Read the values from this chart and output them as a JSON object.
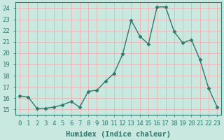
{
  "x": [
    0,
    1,
    2,
    3,
    4,
    5,
    6,
    7,
    8,
    9,
    10,
    11,
    12,
    13,
    14,
    15,
    16,
    17,
    18,
    19,
    20,
    21,
    22,
    23
  ],
  "y": [
    16.2,
    16.1,
    15.1,
    15.1,
    15.2,
    15.4,
    15.7,
    15.2,
    16.6,
    16.7,
    17.5,
    18.2,
    19.9,
    22.9,
    21.5,
    20.8,
    24.1,
    24.1,
    21.9,
    20.9,
    21.2,
    19.4,
    16.9,
    15.2
  ],
  "line_color": "#2d7a6e",
  "marker": "D",
  "marker_size": 2.5,
  "bg_color": "#c8e8e0",
  "grid_color": "#e8b8b8",
  "xlabel": "Humidex (Indice chaleur)",
  "xlim": [
    -0.5,
    23.5
  ],
  "ylim": [
    14.5,
    24.5
  ],
  "yticks": [
    15,
    16,
    17,
    18,
    19,
    20,
    21,
    22,
    23,
    24
  ],
  "xtick_labels": [
    "0",
    "1",
    "2",
    "3",
    "4",
    "5",
    "6",
    "7",
    "8",
    "9",
    "10",
    "11",
    "12",
    "13",
    "14",
    "15",
    "16",
    "17",
    "18",
    "19",
    "20",
    "21",
    "22",
    "23"
  ],
  "xlabel_fontsize": 7.5,
  "tick_fontsize": 6.5,
  "tick_color": "#2d7a6e"
}
